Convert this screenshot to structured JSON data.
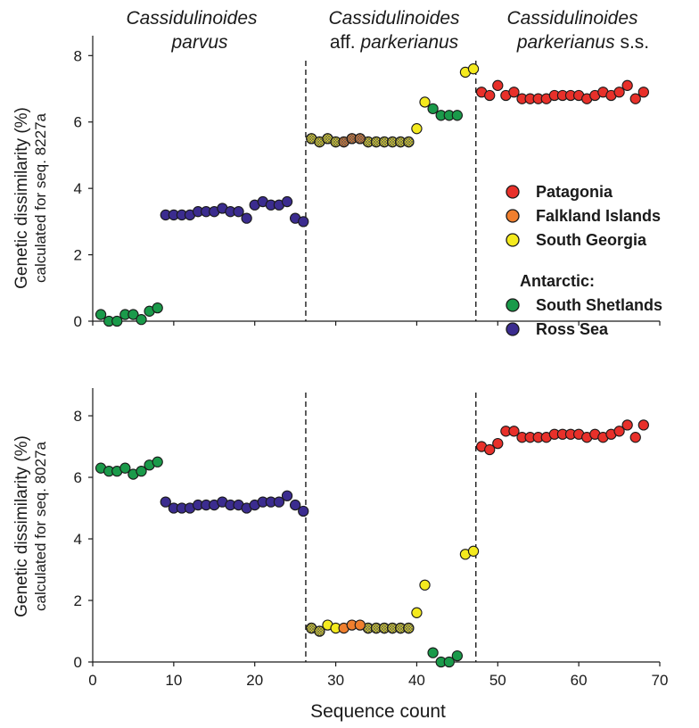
{
  "figure": {
    "xlabel": "Sequence count",
    "group_headers": [
      {
        "line1": "Cassidulinoides",
        "line1_style": "italic",
        "line2_parts": [
          {
            "text": "parvus",
            "italic": true
          }
        ]
      },
      {
        "line1": "Cassidulinoides",
        "line1_style": "italic",
        "line2_parts": [
          {
            "text": "aff. ",
            "italic": false
          },
          {
            "text": "parkerianus",
            "italic": true
          }
        ]
      },
      {
        "line1": "Cassidulinoides",
        "line1_style": "italic",
        "line2_parts": [
          {
            "text": "parkerianus",
            "italic": true
          },
          {
            "text": " s.s.",
            "italic": false
          }
        ]
      }
    ],
    "legend": {
      "items": [
        {
          "label": "Patagonia",
          "color": "#e8302a"
        },
        {
          "label": "Falkland Islands",
          "color": "#f07f2e"
        },
        {
          "label": "South Georgia",
          "color": "#f4ea1e"
        },
        {
          "label": "Antarctic:",
          "color": null
        },
        {
          "label": "South Shetlands",
          "color": "#1a9a4a"
        },
        {
          "label": "Ross Sea",
          "color": "#3b2c8f"
        }
      ]
    }
  },
  "chart_data": [
    {
      "type": "scatter",
      "ylabel": "Genetic dissimilarity (%)",
      "ylabel_sub": "calculated for seq. 8227a",
      "xlim": [
        0,
        70
      ],
      "ylim": [
        0,
        8.6
      ],
      "yticks": [
        0,
        2,
        4,
        6,
        8
      ],
      "xticks": [
        0,
        10,
        20,
        30,
        40,
        50,
        60,
        70
      ],
      "show_xtick_labels": false,
      "group_dividers_x": [
        26.3,
        47.3
      ],
      "series": [
        {
          "region": "South Shetlands",
          "color": "#1a9a4a",
          "points": [
            [
              1,
              0.2
            ],
            [
              2,
              0.0
            ],
            [
              3,
              0.0
            ],
            [
              4,
              0.2
            ],
            [
              5,
              0.2
            ],
            [
              6,
              0.05
            ],
            [
              7,
              0.3
            ],
            [
              8,
              0.4
            ]
          ]
        },
        {
          "region": "Ross Sea",
          "color": "#3b2c8f",
          "points": [
            [
              9,
              3.2
            ],
            [
              10,
              3.2
            ],
            [
              11,
              3.2
            ],
            [
              12,
              3.2
            ],
            [
              13,
              3.3
            ],
            [
              14,
              3.3
            ],
            [
              15,
              3.3
            ],
            [
              16,
              3.4
            ],
            [
              17,
              3.3
            ],
            [
              18,
              3.3
            ],
            [
              19,
              3.1
            ],
            [
              20,
              3.5
            ],
            [
              21,
              3.6
            ],
            [
              22,
              3.5
            ],
            [
              23,
              3.5
            ],
            [
              24,
              3.6
            ],
            [
              25,
              3.1
            ],
            [
              26,
              3.0
            ]
          ]
        },
        {
          "region": "South Georgia",
          "color": "#f4ea1e",
          "hatched": true,
          "points": [
            [
              27,
              5.5
            ],
            [
              28,
              5.4
            ],
            [
              29,
              5.5
            ],
            [
              30,
              5.4
            ],
            [
              34,
              5.4
            ],
            [
              35,
              5.4
            ],
            [
              36,
              5.4
            ],
            [
              37,
              5.4
            ],
            [
              38,
              5.4
            ],
            [
              39,
              5.4
            ]
          ]
        },
        {
          "region": "Falkland Islands",
          "color": "#f07f2e",
          "hatched": true,
          "points": [
            [
              31,
              5.4
            ],
            [
              32,
              5.5
            ],
            [
              33,
              5.5
            ]
          ]
        },
        {
          "region": "South Georgia",
          "color": "#f4ea1e",
          "points": [
            [
              40,
              5.8
            ],
            [
              41,
              6.6
            ],
            [
              46,
              7.5
            ],
            [
              47,
              7.6
            ]
          ]
        },
        {
          "region": "South Shetlands",
          "color": "#1a9a4a",
          "points": [
            [
              42,
              6.4
            ],
            [
              43,
              6.2
            ],
            [
              44,
              6.2
            ],
            [
              45,
              6.2
            ]
          ]
        },
        {
          "region": "Patagonia",
          "color": "#e8302a",
          "points": [
            [
              48,
              6.9
            ],
            [
              49,
              6.8
            ],
            [
              50,
              7.1
            ],
            [
              51,
              6.8
            ],
            [
              52,
              6.9
            ],
            [
              53,
              6.7
            ],
            [
              54,
              6.7
            ],
            [
              55,
              6.7
            ],
            [
              56,
              6.7
            ],
            [
              57,
              6.8
            ],
            [
              58,
              6.8
            ],
            [
              59,
              6.8
            ],
            [
              60,
              6.8
            ],
            [
              61,
              6.7
            ],
            [
              62,
              6.8
            ],
            [
              63,
              6.9
            ],
            [
              64,
              6.8
            ],
            [
              65,
              6.9
            ],
            [
              66,
              7.1
            ],
            [
              67,
              6.7
            ],
            [
              68,
              6.9
            ]
          ]
        }
      ]
    },
    {
      "type": "scatter",
      "ylabel": "Genetic dissimilarity (%)",
      "ylabel_sub": "calculated for seq. 8027a",
      "xlim": [
        0,
        70
      ],
      "ylim": [
        0,
        8.9
      ],
      "yticks": [
        0,
        2,
        4,
        6,
        8
      ],
      "xticks": [
        0,
        10,
        20,
        30,
        40,
        50,
        60,
        70
      ],
      "show_xtick_labels": true,
      "group_dividers_x": [
        26.3,
        47.3
      ],
      "series": [
        {
          "region": "South Shetlands",
          "color": "#1a9a4a",
          "points": [
            [
              1,
              6.3
            ],
            [
              2,
              6.2
            ],
            [
              3,
              6.2
            ],
            [
              4,
              6.3
            ],
            [
              5,
              6.1
            ],
            [
              6,
              6.2
            ],
            [
              7,
              6.4
            ],
            [
              8,
              6.5
            ]
          ]
        },
        {
          "region": "Ross Sea",
          "color": "#3b2c8f",
          "points": [
            [
              9,
              5.2
            ],
            [
              10,
              5.0
            ],
            [
              11,
              5.0
            ],
            [
              12,
              5.0
            ],
            [
              13,
              5.1
            ],
            [
              14,
              5.1
            ],
            [
              15,
              5.1
            ],
            [
              16,
              5.2
            ],
            [
              17,
              5.1
            ],
            [
              18,
              5.1
            ],
            [
              19,
              5.0
            ],
            [
              20,
              5.1
            ],
            [
              21,
              5.2
            ],
            [
              22,
              5.2
            ],
            [
              23,
              5.2
            ],
            [
              24,
              5.4
            ],
            [
              25,
              5.1
            ],
            [
              26,
              4.9
            ]
          ]
        },
        {
          "region": "South Georgia",
          "color": "#f4ea1e",
          "hatched": true,
          "points": [
            [
              27,
              1.1
            ],
            [
              28,
              1.0
            ],
            [
              34,
              1.1
            ],
            [
              35,
              1.1
            ],
            [
              36,
              1.1
            ],
            [
              37,
              1.1
            ],
            [
              38,
              1.1
            ],
            [
              39,
              1.1
            ]
          ]
        },
        {
          "region": "South Georgia",
          "color": "#f4ea1e",
          "points": [
            [
              29,
              1.2
            ],
            [
              30,
              1.1
            ]
          ]
        },
        {
          "region": "Falkland Islands",
          "color": "#f07f2e",
          "points": [
            [
              31,
              1.1
            ],
            [
              32,
              1.2
            ],
            [
              33,
              1.2
            ]
          ]
        },
        {
          "region": "South Georgia",
          "color": "#f4ea1e",
          "points": [
            [
              40,
              1.6
            ],
            [
              41,
              2.5
            ],
            [
              46,
              3.5
            ],
            [
              47,
              3.6
            ]
          ]
        },
        {
          "region": "South Shetlands",
          "color": "#1a9a4a",
          "points": [
            [
              42,
              0.3
            ],
            [
              43,
              0.0
            ],
            [
              44,
              0.0
            ],
            [
              45,
              0.2
            ]
          ]
        },
        {
          "region": "Patagonia",
          "color": "#e8302a",
          "points": [
            [
              48,
              7.0
            ],
            [
              49,
              6.9
            ],
            [
              50,
              7.1
            ],
            [
              51,
              7.5
            ],
            [
              52,
              7.5
            ],
            [
              53,
              7.3
            ],
            [
              54,
              7.3
            ],
            [
              55,
              7.3
            ],
            [
              56,
              7.3
            ],
            [
              57,
              7.4
            ],
            [
              58,
              7.4
            ],
            [
              59,
              7.4
            ],
            [
              60,
              7.4
            ],
            [
              61,
              7.3
            ],
            [
              62,
              7.4
            ],
            [
              63,
              7.3
            ],
            [
              64,
              7.4
            ],
            [
              65,
              7.5
            ],
            [
              66,
              7.7
            ],
            [
              67,
              7.3
            ],
            [
              68,
              7.7
            ]
          ]
        }
      ]
    }
  ]
}
